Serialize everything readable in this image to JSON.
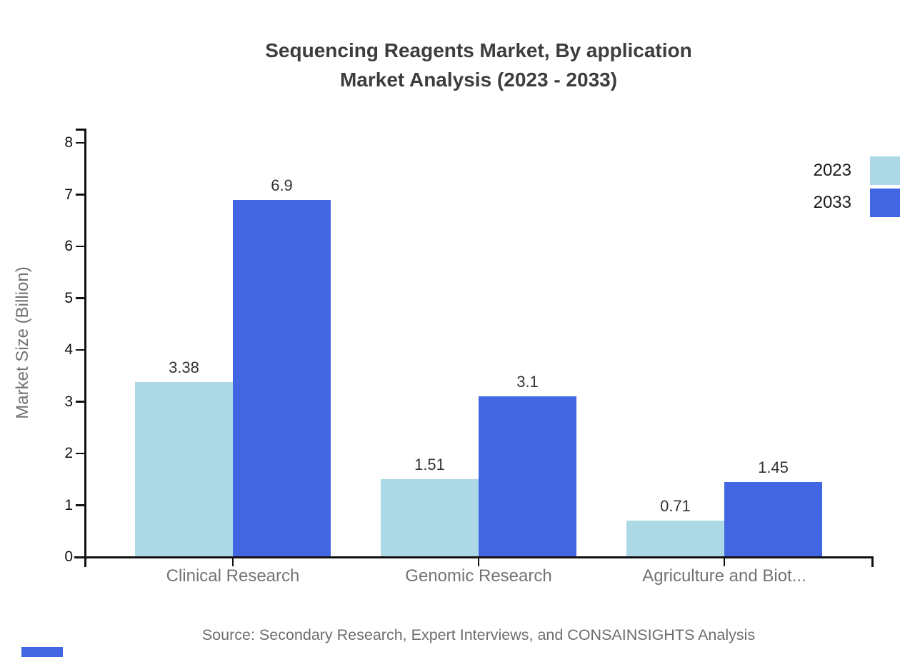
{
  "title": {
    "line1": "Sequencing Reagents Market, By application",
    "line2": "Market Analysis (2023 - 2033)"
  },
  "source": "Source: Secondary Research, Expert Interviews, and CONSAINSIGHTS Analysis",
  "legend": [
    {
      "label": "2023",
      "color": "#ADD8E6"
    },
    {
      "label": "2033",
      "color": "#4266E1"
    }
  ],
  "colors": {
    "series_2023": "#ADD8E6",
    "series_2033": "#4266E1",
    "axis": "#111111",
    "title_text": "#3d3d3d",
    "muted_text": "#737373",
    "value_label_text": "#333333",
    "accent": "#4266E1"
  },
  "chart_data": {
    "type": "bar",
    "title": "Sequencing Reagents Market, By application Market Analysis (2023 - 2033)",
    "categories": [
      "Clinical Research",
      "Genomic Research",
      "Agriculture and Biot..."
    ],
    "series": [
      {
        "name": "2023",
        "color": "#ADD8E6",
        "values": [
          3.38,
          1.51,
          0.71
        ]
      },
      {
        "name": "2033",
        "color": "#4266E1",
        "values": [
          6.9,
          3.1,
          1.45
        ]
      }
    ],
    "xlabel": "",
    "ylabel": "Market Size (Billion)",
    "ylim": [
      0,
      8
    ],
    "yticks": [
      0,
      1,
      2,
      3,
      4,
      5,
      6,
      7,
      8
    ],
    "grid": false,
    "legend_position": "top-right",
    "value_labels_shown": true
  }
}
